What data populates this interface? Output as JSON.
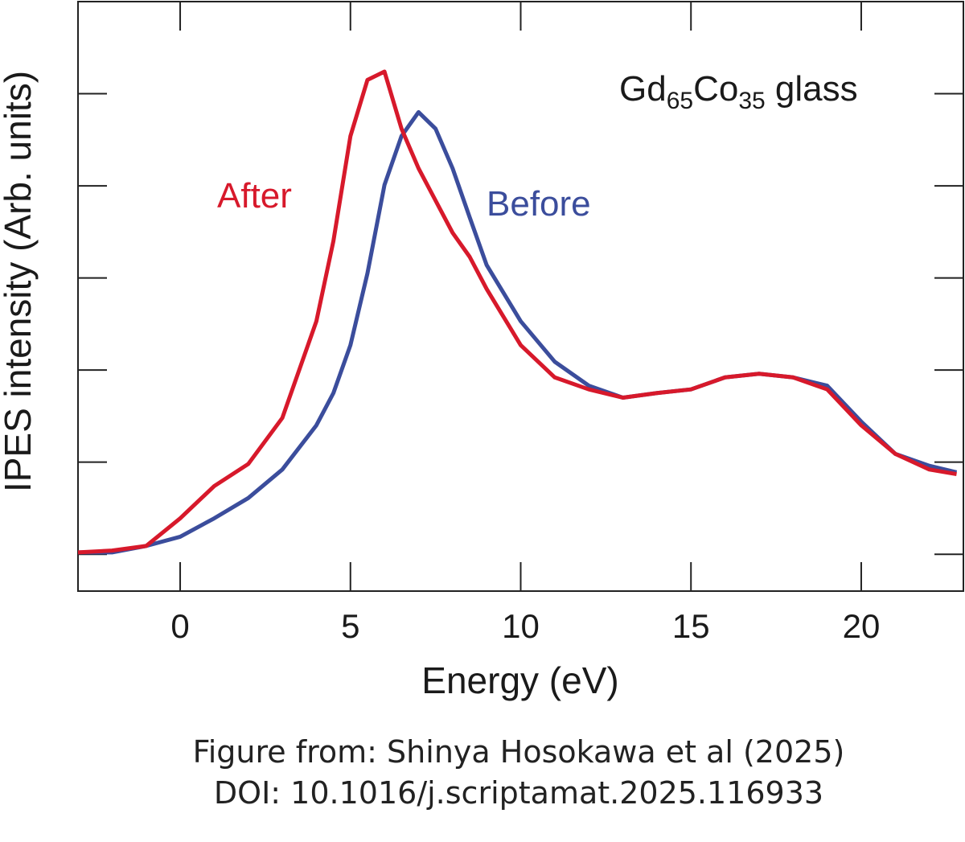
{
  "chart_data": {
    "type": "line",
    "title": [
      {
        "text": "Gd"
      },
      {
        "text": "65",
        "sub": true
      },
      {
        "text": "Co"
      },
      {
        "text": "35",
        "sub": true
      },
      {
        "text": " glass"
      }
    ],
    "xlabel": "Energy  (eV)",
    "ylabel": "IPES intensity  (Arb. units)",
    "x": [
      -3,
      -2,
      -1,
      0,
      1,
      2,
      3,
      4,
      4.5,
      5,
      5.5,
      6,
      6.5,
      7,
      7.5,
      8,
      8.5,
      9,
      10,
      11,
      12,
      13,
      14,
      15,
      16,
      17,
      18,
      19,
      20,
      21,
      22,
      22.8
    ],
    "series": [
      {
        "name": "After",
        "color": "#d7192b",
        "values": [
          0.02,
          0.04,
          0.09,
          0.39,
          0.74,
          0.98,
          1.48,
          2.53,
          3.4,
          4.54,
          5.15,
          5.24,
          4.62,
          4.19,
          3.84,
          3.49,
          3.23,
          2.88,
          2.27,
          1.92,
          1.79,
          1.7,
          1.75,
          1.79,
          1.92,
          1.96,
          1.92,
          1.79,
          1.4,
          1.09,
          0.92,
          0.87
        ]
      },
      {
        "name": "Before",
        "color": "#3b4d9c",
        "values": [
          0.02,
          0.02,
          0.09,
          0.19,
          0.39,
          0.61,
          0.92,
          1.4,
          1.75,
          2.27,
          3.05,
          4.01,
          4.54,
          4.8,
          4.62,
          4.19,
          3.66,
          3.14,
          2.53,
          2.09,
          1.83,
          1.7,
          1.75,
          1.79,
          1.92,
          1.96,
          1.92,
          1.83,
          1.44,
          1.09,
          0.96,
          0.89
        ]
      }
    ],
    "xlim": [
      -3,
      23
    ],
    "xticks": [
      0,
      5,
      10,
      15,
      20
    ],
    "ylim": [
      -0.4,
      6
    ],
    "yticks": [
      0,
      1,
      2,
      3,
      4,
      5
    ],
    "ytick_labels": false,
    "mirror_ticks": true,
    "grid": false
  },
  "caption": [
    "Figure from: Shinya Hosokawa et al (2025)",
    "DOI:  10.1016/j.scriptamat.2025.116933"
  ]
}
